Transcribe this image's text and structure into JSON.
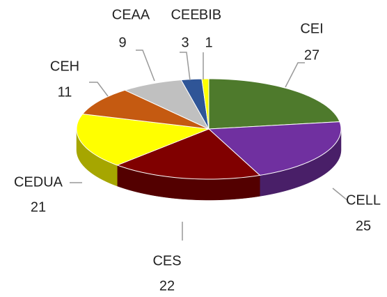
{
  "chart_data": {
    "type": "pie",
    "categories": [
      "CEI",
      "CELL",
      "CES",
      "CEDUA",
      "CEH",
      "CEAA",
      "CEE",
      "BIB"
    ],
    "values": [
      27,
      25,
      22,
      21,
      11,
      9,
      3,
      1
    ],
    "colors": [
      "#4e7a2c",
      "#7030a0",
      "#800000",
      "#ffff00",
      "#c55a11",
      "#c0c0c0",
      "#2f5597",
      "#ffff00"
    ]
  }
}
